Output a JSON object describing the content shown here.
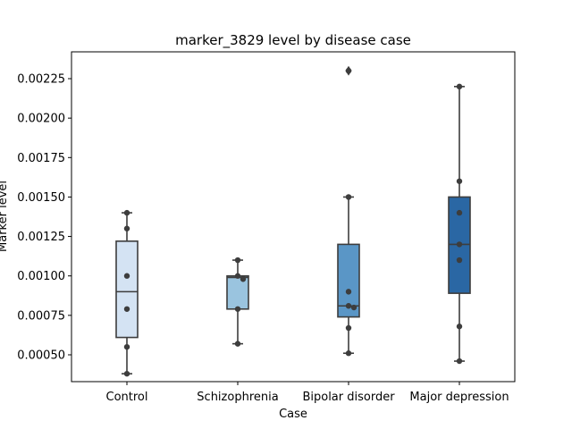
{
  "chart_data": {
    "type": "box",
    "title": "marker_3829 level by disease case",
    "xlabel": "Case",
    "ylabel": "Marker level",
    "ylim": [
      0.00033,
      0.00242
    ],
    "yticks": [
      0.0005,
      0.00075,
      0.001,
      0.00125,
      0.0015,
      0.00175,
      0.002,
      0.00225
    ],
    "ytick_labels": [
      "0.00050",
      "0.00075",
      "0.00100",
      "0.00125",
      "0.00150",
      "0.00175",
      "0.00200",
      "0.00225"
    ],
    "categories": [
      "Control",
      "Schizophrenia",
      "Bipolar disorder",
      "Major depression"
    ],
    "boxes": [
      {
        "whisker_low": 0.00038,
        "q1": 0.00061,
        "median": 0.0009,
        "q3": 0.00122,
        "whisker_high": 0.0014,
        "fliers": [],
        "color": "#d4e3f3"
      },
      {
        "whisker_low": 0.00057,
        "q1": 0.00079,
        "median": 0.00099,
        "q3": 0.001,
        "whisker_high": 0.0011,
        "fliers": [],
        "color": "#9ac4df"
      },
      {
        "whisker_low": 0.00051,
        "q1": 0.00074,
        "median": 0.00081,
        "q3": 0.0012,
        "whisker_high": 0.0015,
        "fliers": [
          0.0023
        ],
        "color": "#5a96c6"
      },
      {
        "whisker_low": 0.00046,
        "q1": 0.00089,
        "median": 0.0012,
        "q3": 0.0015,
        "whisker_high": 0.0022,
        "fliers": [],
        "color": "#2a67a4"
      }
    ],
    "points": [
      [
        0.0014,
        0.0013,
        0.001,
        0.00079,
        0.00055,
        0.00038
      ],
      [
        0.0011,
        0.001,
        0.00098,
        0.00079,
        0.00057
      ],
      [
        0.0023,
        0.0015,
        0.0009,
        0.00081,
        0.0008,
        0.00067,
        0.00051
      ],
      [
        0.0022,
        0.0016,
        0.0014,
        0.0012,
        0.0011,
        0.00068,
        0.00046
      ]
    ],
    "grid": false,
    "legend": "none"
  }
}
